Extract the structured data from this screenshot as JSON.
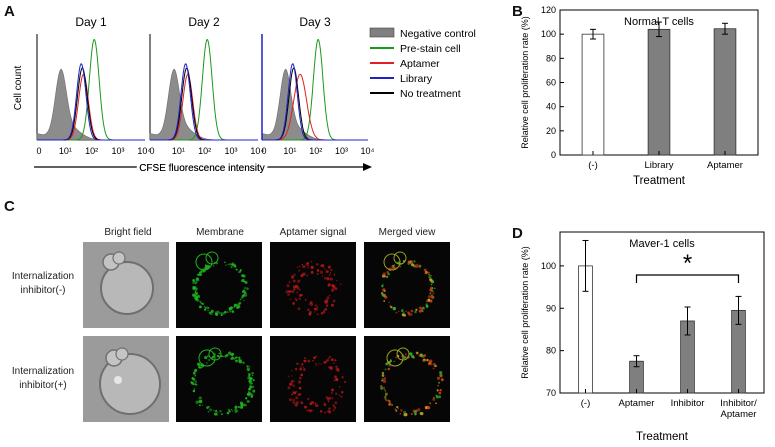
{
  "panels": {
    "A": {
      "letter": "A",
      "ylabel": "Cell count",
      "xlabel": "CFSE fluorescence intensity",
      "tick_labels": [
        "0",
        "10¹",
        "10²",
        "10³",
        "10⁴"
      ],
      "days": [
        "Day 1",
        "Day 2",
        "Day 3"
      ],
      "legend": [
        {
          "label": "Negative control",
          "color": "#7f7f7f",
          "style": "filled"
        },
        {
          "label": "Pre-stain cell",
          "color": "#1a9a1a",
          "style": "line"
        },
        {
          "label": "Aptamer",
          "color": "#e02020",
          "style": "line"
        },
        {
          "label": "Library",
          "color": "#2020c8",
          "style": "line"
        },
        {
          "label": "No treatment",
          "color": "#000000",
          "style": "line"
        }
      ]
    },
    "B": {
      "letter": "B"
    },
    "C": {
      "letter": "C",
      "column_headers": [
        "Bright field",
        "Membrane",
        "Aptamer signal",
        "Merged view"
      ],
      "row_labels": [
        [
          "Internalization",
          "inhibitor(-)"
        ],
        [
          "Internalization",
          "inhibitor(+)"
        ]
      ],
      "channel_colors": [
        "#9a9a9a",
        "#1fb21f",
        "#d21a1a",
        "#c8a020"
      ]
    },
    "D": {
      "letter": "D"
    }
  },
  "chart_data": [
    {
      "id": "B",
      "type": "bar",
      "title": "Normal T cells",
      "xlabel": "Treatment",
      "ylabel": "Relative cell proliferation rate (%)",
      "categories": [
        "(-)",
        "Library",
        "Aptamer"
      ],
      "values": [
        100,
        104,
        104.5
      ],
      "errors": [
        4,
        6,
        4.5
      ],
      "bar_colors": [
        "#ffffff",
        "#7f7f7f",
        "#7f7f7f"
      ],
      "ylim": [
        0,
        120
      ],
      "yticks": [
        0,
        20,
        40,
        60,
        80,
        100,
        120
      ]
    },
    {
      "id": "D",
      "type": "bar",
      "title": "Maver-1 cells",
      "xlabel": "Treatment",
      "ylabel": "Relative cell proliferation rate (%)",
      "categories": [
        [
          "(-)"
        ],
        [
          "Aptamer"
        ],
        [
          "Inhibitor"
        ],
        [
          "Inhibitor/",
          "Aptamer"
        ]
      ],
      "values": [
        100,
        77.5,
        87,
        89.5
      ],
      "errors": [
        6,
        1.3,
        3.3,
        3.3
      ],
      "bar_colors": [
        "#ffffff",
        "#7f7f7f",
        "#7f7f7f",
        "#7f7f7f"
      ],
      "ylim": [
        70,
        108
      ],
      "yticks": [
        70,
        80,
        90,
        100
      ],
      "significance": {
        "between": [
          1,
          3
        ],
        "label": "*"
      }
    }
  ]
}
